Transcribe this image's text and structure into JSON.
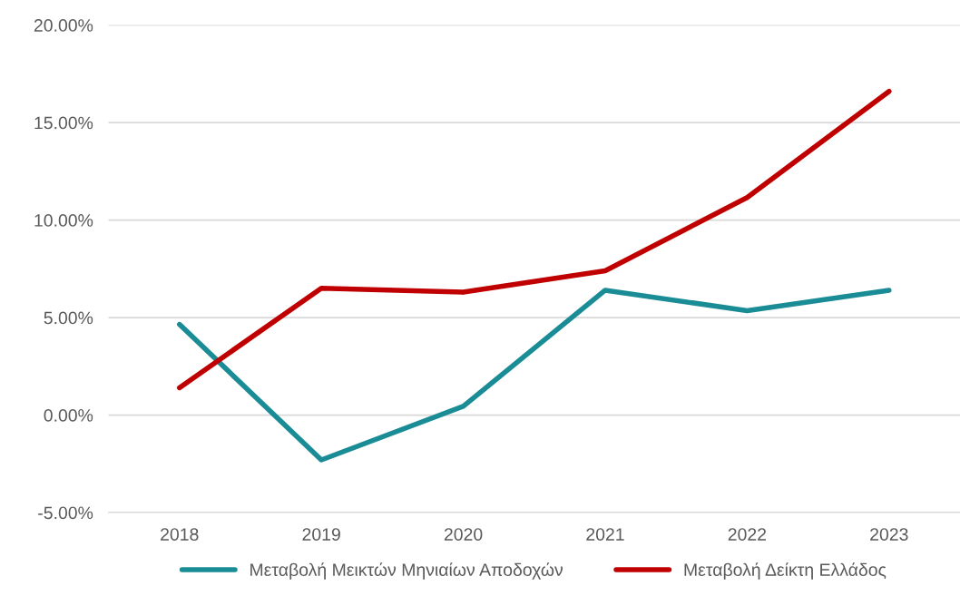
{
  "chart_data": {
    "type": "line",
    "categories": [
      "2018",
      "2019",
      "2020",
      "2021",
      "2022",
      "2023"
    ],
    "series": [
      {
        "name": "Μεταβολή Μεικτών Μηνιαίων Αποδοχών",
        "color": "#1a8c96",
        "values": [
          4.65,
          -2.3,
          0.45,
          6.4,
          5.35,
          6.4
        ]
      },
      {
        "name": "Μεταβολή Δείκτη Ελλάδος",
        "color": "#c00000",
        "values": [
          1.4,
          6.5,
          6.3,
          7.4,
          11.15,
          16.6
        ]
      }
    ],
    "ylim": [
      -5,
      20
    ],
    "yticks": [
      {
        "value": -5,
        "label": "-5.00%"
      },
      {
        "value": 0,
        "label": "0.00%"
      },
      {
        "value": 5,
        "label": "5.00%"
      },
      {
        "value": 10,
        "label": "10.00%"
      },
      {
        "value": 15,
        "label": "15.00%"
      },
      {
        "value": 20,
        "label": "20.00%"
      }
    ],
    "grid": "y",
    "legend": "bottom",
    "marker": "none",
    "line_style": "solid"
  }
}
